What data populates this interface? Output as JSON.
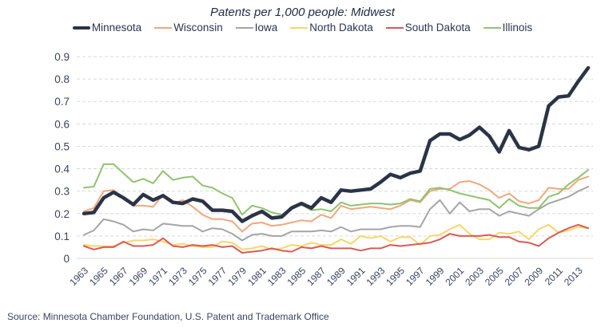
{
  "chart_data": {
    "type": "line",
    "title": "Patents per 1,000 people: Midwest",
    "xlabel": "",
    "ylabel": "",
    "ylim": [
      0,
      0.9
    ],
    "yticks": [
      "0",
      "0.1",
      "0.2",
      "0.3",
      "0.4",
      "0.5",
      "0.6",
      "0.7",
      "0.8",
      "0.9"
    ],
    "xtick_labels": [
      "1963",
      "1965",
      "1967",
      "1969",
      "1971",
      "1973",
      "1975",
      "1977",
      "1979",
      "1981",
      "1983",
      "1985",
      "1987",
      "1989",
      "1991",
      "1993",
      "1995",
      "1997",
      "1999",
      "2001",
      "2003",
      "2005",
      "2007",
      "2009",
      "2011",
      "2013"
    ],
    "grid": "horizontal-dashed",
    "legend_position": "top",
    "x": [
      1963,
      1964,
      1965,
      1966,
      1967,
      1968,
      1969,
      1970,
      1971,
      1972,
      1973,
      1974,
      1975,
      1976,
      1977,
      1978,
      1979,
      1980,
      1981,
      1982,
      1983,
      1984,
      1985,
      1986,
      1987,
      1988,
      1989,
      1990,
      1991,
      1992,
      1993,
      1994,
      1995,
      1996,
      1997,
      1998,
      1999,
      2000,
      2001,
      2002,
      2003,
      2004,
      2005,
      2006,
      2007,
      2008,
      2009,
      2010,
      2011,
      2012,
      2013,
      2014
    ],
    "series": [
      {
        "name": "Minnesota",
        "color": "#2b3447",
        "values": [
          0.2,
          0.205,
          0.27,
          0.295,
          0.27,
          0.24,
          0.285,
          0.26,
          0.28,
          0.25,
          0.245,
          0.265,
          0.255,
          0.215,
          0.215,
          0.21,
          0.165,
          0.19,
          0.21,
          0.18,
          0.185,
          0.225,
          0.245,
          0.225,
          0.27,
          0.25,
          0.305,
          0.3,
          0.305,
          0.31,
          0.34,
          0.375,
          0.36,
          0.38,
          0.39,
          0.525,
          0.555,
          0.555,
          0.53,
          0.55,
          0.585,
          0.545,
          0.475,
          0.57,
          0.495,
          0.485,
          0.5,
          0.68,
          0.72,
          0.725,
          0.79,
          0.85
        ]
      },
      {
        "name": "Wisconsin",
        "color": "#f0a77e",
        "values": [
          0.21,
          0.225,
          0.3,
          0.305,
          0.27,
          0.235,
          0.235,
          0.23,
          0.285,
          0.245,
          0.26,
          0.23,
          0.195,
          0.175,
          0.175,
          0.165,
          0.12,
          0.155,
          0.16,
          0.145,
          0.15,
          0.16,
          0.17,
          0.165,
          0.195,
          0.18,
          0.235,
          0.22,
          0.225,
          0.23,
          0.225,
          0.22,
          0.235,
          0.26,
          0.25,
          0.3,
          0.31,
          0.31,
          0.34,
          0.345,
          0.33,
          0.305,
          0.27,
          0.29,
          0.255,
          0.245,
          0.26,
          0.315,
          0.31,
          0.31,
          0.35,
          0.365
        ]
      },
      {
        "name": "Iowa",
        "color": "#a5a5a5",
        "values": [
          0.105,
          0.125,
          0.175,
          0.165,
          0.15,
          0.12,
          0.13,
          0.125,
          0.155,
          0.15,
          0.145,
          0.145,
          0.12,
          0.135,
          0.13,
          0.11,
          0.08,
          0.105,
          0.11,
          0.1,
          0.1,
          0.12,
          0.12,
          0.12,
          0.125,
          0.12,
          0.14,
          0.12,
          0.13,
          0.13,
          0.13,
          0.14,
          0.145,
          0.145,
          0.14,
          0.22,
          0.26,
          0.2,
          0.25,
          0.21,
          0.22,
          0.22,
          0.19,
          0.21,
          0.2,
          0.19,
          0.22,
          0.245,
          0.26,
          0.275,
          0.3,
          0.32
        ]
      },
      {
        "name": "North Dakota",
        "color": "#f9d667",
        "values": [
          0.06,
          0.055,
          0.055,
          0.055,
          0.07,
          0.08,
          0.08,
          0.085,
          0.075,
          0.06,
          0.065,
          0.055,
          0.05,
          0.05,
          0.075,
          0.07,
          0.04,
          0.045,
          0.055,
          0.04,
          0.045,
          0.06,
          0.055,
          0.07,
          0.06,
          0.06,
          0.085,
          0.065,
          0.1,
          0.09,
          0.1,
          0.075,
          0.095,
          0.095,
          0.06,
          0.1,
          0.105,
          0.13,
          0.15,
          0.11,
          0.085,
          0.085,
          0.115,
          0.11,
          0.12,
          0.085,
          0.13,
          0.15,
          0.115,
          0.125,
          0.14,
          0.135
        ]
      },
      {
        "name": "South Dakota",
        "color": "#d85b56",
        "values": [
          0.055,
          0.04,
          0.05,
          0.05,
          0.075,
          0.055,
          0.055,
          0.06,
          0.09,
          0.055,
          0.05,
          0.06,
          0.055,
          0.06,
          0.05,
          0.055,
          0.025,
          0.03,
          0.035,
          0.045,
          0.035,
          0.03,
          0.05,
          0.045,
          0.055,
          0.045,
          0.045,
          0.045,
          0.035,
          0.045,
          0.045,
          0.06,
          0.055,
          0.06,
          0.065,
          0.07,
          0.085,
          0.11,
          0.1,
          0.1,
          0.1,
          0.105,
          0.095,
          0.095,
          0.075,
          0.07,
          0.055,
          0.09,
          0.115,
          0.135,
          0.15,
          0.135
        ]
      },
      {
        "name": "Illinois",
        "color": "#8fc36f",
        "values": [
          0.315,
          0.32,
          0.42,
          0.42,
          0.38,
          0.34,
          0.355,
          0.335,
          0.39,
          0.35,
          0.36,
          0.365,
          0.325,
          0.315,
          0.29,
          0.27,
          0.195,
          0.235,
          0.225,
          0.205,
          0.195,
          0.225,
          0.24,
          0.215,
          0.22,
          0.21,
          0.25,
          0.235,
          0.24,
          0.245,
          0.245,
          0.24,
          0.245,
          0.265,
          0.255,
          0.31,
          0.315,
          0.305,
          0.29,
          0.28,
          0.27,
          0.26,
          0.225,
          0.265,
          0.235,
          0.225,
          0.225,
          0.275,
          0.29,
          0.33,
          0.36,
          0.395
        ]
      }
    ]
  },
  "source_note": "Source: Minnesota Chamber Foundation, U.S. Patent and Trademark Office"
}
